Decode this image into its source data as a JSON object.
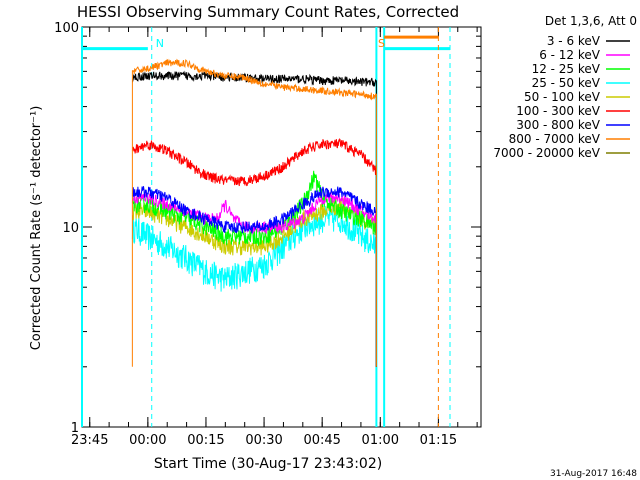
{
  "chart_data": {
    "type": "line",
    "title": "HESSI Observing Summary Count Rates, Corrected",
    "xlabel": "Start Time (30-Aug-17 23:43:02)",
    "ylabel": "Corrected Count Rate (s⁻¹ detector⁻¹)",
    "footer": "31-Aug-2017 16:48",
    "legend_header": "Det 1,3,6, Att 0",
    "legend_position": "right",
    "y_scale": "log",
    "ylim": [
      1,
      100
    ],
    "xlim_minutes": [
      -17,
      86
    ],
    "x_ticks": [
      {
        "label": "23:45",
        "minutes": -15
      },
      {
        "label": "00:00",
        "minutes": 0
      },
      {
        "label": "00:15",
        "minutes": 15
      },
      {
        "label": "00:30",
        "minutes": 30
      },
      {
        "label": "00:45",
        "minutes": 45
      },
      {
        "label": "01:00",
        "minutes": 60
      },
      {
        "label": "01:15",
        "minutes": 75
      }
    ],
    "y_ticks": [
      {
        "label": "1",
        "value": 1
      },
      {
        "label": "10",
        "value": 10
      },
      {
        "label": "100",
        "value": 100
      }
    ],
    "markers": [
      {
        "label": "N",
        "minutes": 1,
        "color": "#00ffff"
      },
      {
        "label": "S",
        "minutes": 62,
        "color": "#ff7f00"
      }
    ],
    "series": [
      {
        "name": "3 - 6 keV",
        "color": "#000000",
        "x": [
          -4,
          0,
          5,
          10,
          15,
          20,
          25,
          30,
          35,
          40,
          45,
          50,
          55,
          59
        ],
        "y": [
          56,
          57,
          57,
          57,
          57,
          56,
          56,
          55,
          55,
          55,
          54,
          54,
          53,
          53
        ]
      },
      {
        "name": "6 - 12 keV",
        "color": "#ff00ff",
        "x": [
          -4,
          0,
          5,
          10,
          15,
          18,
          20,
          22,
          25,
          30,
          35,
          40,
          45,
          50,
          55,
          59
        ],
        "y": [
          14,
          14,
          13,
          12,
          11,
          11,
          13,
          11,
          10,
          10,
          10,
          11,
          14,
          14,
          12,
          11
        ]
      },
      {
        "name": "12 - 25 keV",
        "color": "#00ff00",
        "x": [
          -4,
          0,
          5,
          10,
          15,
          20,
          25,
          30,
          35,
          40,
          43,
          45,
          50,
          55,
          59
        ],
        "y": [
          13,
          13,
          12,
          11,
          10,
          9,
          9,
          9,
          10,
          13,
          18,
          14,
          12,
          11,
          10
        ]
      },
      {
        "name": "25 - 50 keV",
        "color": "#00ffff",
        "x": [
          -4,
          0,
          5,
          10,
          15,
          20,
          25,
          30,
          35,
          40,
          45,
          50,
          55,
          59
        ],
        "y": [
          10,
          9,
          8,
          7,
          6,
          5.5,
          6,
          6.5,
          8,
          10,
          11,
          11,
          9,
          8
        ]
      },
      {
        "name": "50 - 100 keV",
        "color": "#cccc00",
        "x": [
          -4,
          0,
          5,
          10,
          15,
          20,
          25,
          30,
          35,
          40,
          45,
          50,
          55,
          59
        ],
        "y": [
          12,
          12,
          11,
          10,
          9,
          8,
          8,
          8,
          9,
          11,
          12,
          13,
          11,
          10
        ]
      },
      {
        "name": "100 - 300 keV",
        "color": "#ff0000",
        "x": [
          -4,
          0,
          5,
          10,
          15,
          20,
          25,
          30,
          35,
          40,
          45,
          50,
          55,
          59
        ],
        "y": [
          24,
          26,
          24,
          21,
          18,
          17,
          17,
          18,
          20,
          24,
          26,
          26,
          23,
          19
        ]
      },
      {
        "name": "300 - 800 keV",
        "color": "#0000ff",
        "x": [
          -4,
          0,
          5,
          10,
          15,
          20,
          25,
          30,
          35,
          40,
          45,
          50,
          55,
          59
        ],
        "y": [
          15,
          15,
          14,
          12,
          11,
          10,
          10,
          10,
          11,
          13,
          15,
          15,
          13,
          12
        ]
      },
      {
        "name": "800 - 7000 keV",
        "color": "#ff7f00",
        "x": [
          -4,
          0,
          5,
          10,
          15,
          20,
          25,
          30,
          35,
          40,
          45,
          50,
          55,
          59
        ],
        "y": [
          60,
          62,
          66,
          66,
          60,
          57,
          56,
          52,
          50,
          49,
          48,
          47,
          46,
          45
        ]
      },
      {
        "name": "7000 - 20000 keV",
        "color": "#7f7f00",
        "x": [],
        "y": []
      }
    ]
  }
}
